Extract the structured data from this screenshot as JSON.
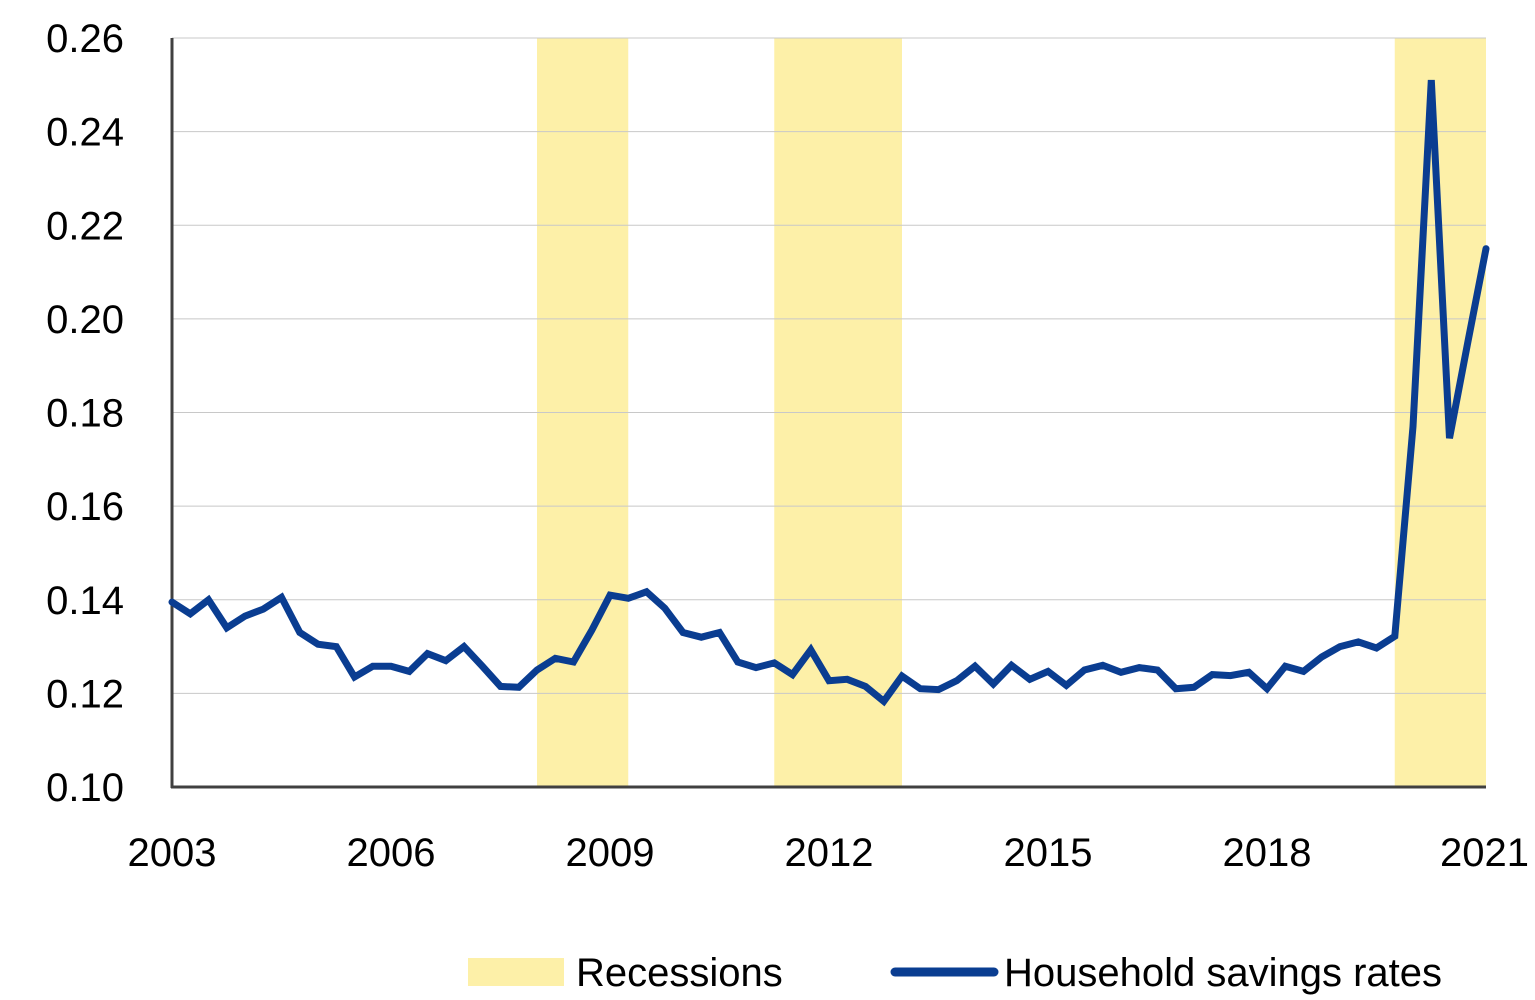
{
  "chart_data": {
    "type": "line",
    "title": "",
    "xlabel": "",
    "ylabel": "",
    "xlim": [
      2003,
      2021
    ],
    "ylim": [
      0.1,
      0.26
    ],
    "grid": "horizontal",
    "legend_position": "bottom-right",
    "x_ticks": [
      "2003",
      "2006",
      "2009",
      "2012",
      "2015",
      "2018",
      "2021"
    ],
    "y_ticks": [
      "0.10",
      "0.12",
      "0.14",
      "0.16",
      "0.18",
      "0.20",
      "0.22",
      "0.24",
      "0.26"
    ],
    "recessions": {
      "name": "Recessions",
      "color": "#fdf0a8",
      "periods": [
        [
          2008.0,
          2009.25
        ],
        [
          2011.25,
          2013.0
        ],
        [
          2019.75,
          2021.0
        ]
      ]
    },
    "series": [
      {
        "name": "Household savings rates",
        "color": "#0a3d91",
        "x": [
          2003.0,
          2003.25,
          2003.5,
          2003.75,
          2004.0,
          2004.25,
          2004.5,
          2004.75,
          2005.0,
          2005.25,
          2005.5,
          2005.75,
          2006.0,
          2006.25,
          2006.5,
          2006.75,
          2007.0,
          2007.25,
          2007.5,
          2007.75,
          2008.0,
          2008.25,
          2008.5,
          2008.75,
          2009.0,
          2009.25,
          2009.5,
          2009.75,
          2010.0,
          2010.25,
          2010.5,
          2010.75,
          2011.0,
          2011.25,
          2011.5,
          2011.75,
          2012.0,
          2012.25,
          2012.5,
          2012.75,
          2013.0,
          2013.25,
          2013.5,
          2013.75,
          2014.0,
          2014.25,
          2014.5,
          2014.75,
          2015.0,
          2015.25,
          2015.5,
          2015.75,
          2016.0,
          2016.25,
          2016.5,
          2016.75,
          2017.0,
          2017.25,
          2017.5,
          2017.75,
          2018.0,
          2018.25,
          2018.5,
          2018.75,
          2019.0,
          2019.25,
          2019.5,
          2019.75,
          2020.0,
          2020.25,
          2020.5,
          2020.75,
          2021.0
        ],
        "values": [
          0.1395,
          0.137,
          0.14,
          0.134,
          0.1365,
          0.138,
          0.1405,
          0.133,
          0.1305,
          0.13,
          0.1235,
          0.1258,
          0.1258,
          0.1247,
          0.1285,
          0.127,
          0.13,
          0.1258,
          0.1215,
          0.1213,
          0.125,
          0.1275,
          0.1267,
          0.1335,
          0.141,
          0.1403,
          0.1417,
          0.1382,
          0.133,
          0.132,
          0.133,
          0.1267,
          0.1255,
          0.1265,
          0.124,
          0.1293,
          0.1227,
          0.123,
          0.1215,
          0.1183,
          0.1237,
          0.121,
          0.1208,
          0.1227,
          0.1258,
          0.122,
          0.126,
          0.123,
          0.1247,
          0.1217,
          0.125,
          0.126,
          0.1245,
          0.1255,
          0.125,
          0.121,
          0.1213,
          0.124,
          0.1238,
          0.1245,
          0.121,
          0.1258,
          0.1247,
          0.1278,
          0.13,
          0.131,
          0.1297,
          0.1322,
          0.177,
          0.251,
          0.1745,
          0.195,
          0.215
        ]
      }
    ]
  }
}
